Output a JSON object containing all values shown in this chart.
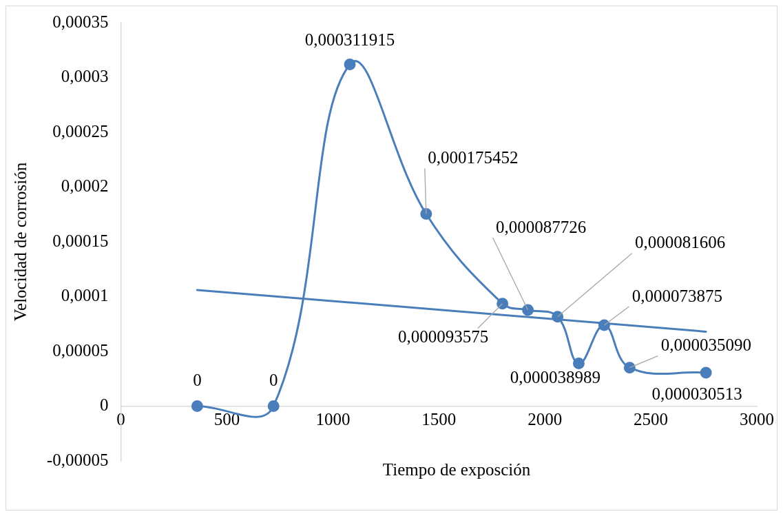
{
  "chart_data": {
    "type": "line",
    "xlabel": "Tiempo de exposción",
    "ylabel": "Velocidad de corrosión",
    "xlim": [
      0,
      3000
    ],
    "xticks": [
      0,
      500,
      1000,
      1500,
      2000,
      2500,
      3000
    ],
    "ylim": [
      -5e-05,
      0.00035
    ],
    "yticks": [
      {
        "value": -5e-05,
        "label": "-0,00005"
      },
      {
        "value": 0,
        "label": "0"
      },
      {
        "value": 5e-05,
        "label": "0,00005"
      },
      {
        "value": 0.0001,
        "label": "0,0001"
      },
      {
        "value": 0.00015,
        "label": "0,00015"
      },
      {
        "value": 0.0002,
        "label": "0,0002"
      },
      {
        "value": 0.00025,
        "label": "0,00025"
      },
      {
        "value": 0.0003,
        "label": "0,0003"
      },
      {
        "value": 0.00035,
        "label": "0,00035"
      }
    ],
    "grid": false,
    "legend": false,
    "marker": "circle",
    "series": [
      {
        "color": "#4a7ebb",
        "x": [
          360,
          720,
          1080,
          1440,
          1800,
          1920,
          2060,
          2160,
          2280,
          2400,
          2760
        ],
        "values": [
          0,
          0,
          0.000311915,
          0.000175452,
          9.3575e-05,
          8.7726e-05,
          8.1606e-05,
          3.8989e-05,
          7.3875e-05,
          3.509e-05,
          3.0513e-05
        ],
        "value_labels": [
          "0",
          "0",
          "0,000311915",
          "0,000175452",
          "0,000093575",
          "0,000087726",
          "0,000081606",
          "0,000038989",
          "0,000073875",
          "0,000035090",
          "0,000030513"
        ]
      },
      {
        "type": "line",
        "marker": "none",
        "color": "#4a7ebb",
        "x": [
          360,
          2760
        ],
        "values": [
          0.000106,
          6.8e-05
        ]
      }
    ]
  }
}
